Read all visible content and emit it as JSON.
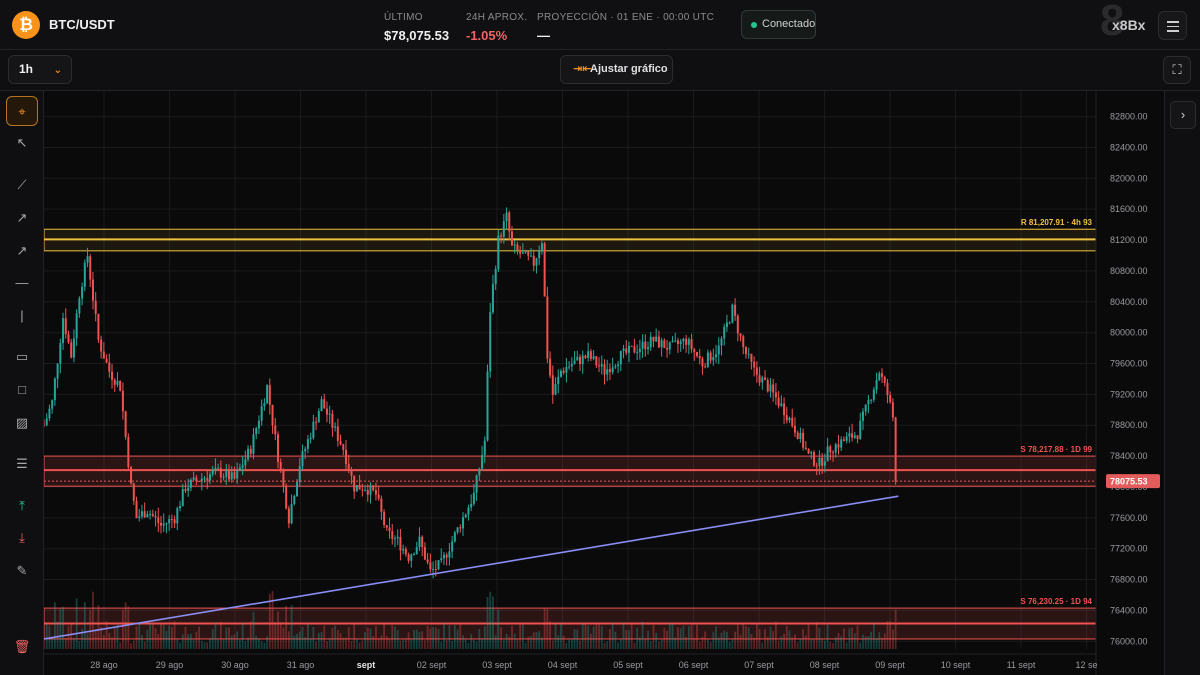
{
  "header": {
    "pair": "BTC/USDT",
    "logo_icon": "bitcoin-logo-icon",
    "last_label": "ÚLTIMO",
    "last_value": "$78,075.53",
    "change_label": "24H APROX.",
    "change_value": "-1.05%",
    "projection_label": "PROYECCIÓN · 01 ENE · 00:00 UTC",
    "projection_value": "—",
    "connection_status": "Conectado",
    "brand": "x8Bx",
    "menu_icon": "hamburger-menu-icon"
  },
  "toolbar": {
    "timeframe": "1h",
    "fit_label": "Ajustar gráfico",
    "fit_icon": "arrows-compress-icon",
    "fullscreen_icon": "fullscreen-icon"
  },
  "left_tools": [
    "crosshair-icon",
    "cursor-icon",
    "trend-line-icon",
    "arrow-line-icon",
    "ray-icon",
    "horizontal-line-icon",
    "vertical-line-icon",
    "horizontal-band-icon",
    "rectangle-icon",
    "hatch-zone-icon",
    "fib-levels-icon",
    "long-position-icon",
    "short-position-icon",
    "note-icon",
    "trash-icon"
  ],
  "right_panel": {
    "expand_icon": "chevron-right-icon"
  },
  "colors": {
    "up": "#26a69a",
    "down": "#ef5350",
    "resistance": "#f0c040",
    "support": "#ef5350",
    "trendline": "#8a8ef5",
    "accent": "#f7931a",
    "price_tag": "#e35b5b"
  },
  "chart_data": {
    "type": "candlestick",
    "interval": "1h",
    "y_ticks": [
      "82800.00",
      "82400.00",
      "82000.00",
      "81600.00",
      "81200.00",
      "80800.00",
      "80400.00",
      "80000.00",
      "79600.00",
      "79200.00",
      "78800.00",
      "78400.00",
      "78000.00",
      "77600.00",
      "77200.00",
      "76800.00",
      "76400.00",
      "76000.00"
    ],
    "ylim": [
      75900,
      82950
    ],
    "x_ticks": [
      "28 ago",
      "29 ago",
      "30 ago",
      "31 ago",
      "sept",
      "02 sept",
      "03 sept",
      "04 sept",
      "05 sept",
      "06 sept",
      "07 sept",
      "08 sept",
      "09 sept",
      "10 sept",
      "11 sept",
      "12 se"
    ],
    "current_price": "78075.53",
    "levels": [
      {
        "kind": "resistance",
        "label": "R 81,207.91 · 4h 93",
        "price": 81207.91,
        "band": [
          81060,
          81340
        ]
      },
      {
        "kind": "support",
        "label": "S 78,217.88 · 1D 99",
        "price": 78217.88,
        "band": [
          78010,
          78400
        ]
      },
      {
        "kind": "support",
        "label": "S 76,230.25 · 1D 94",
        "price": 76230.25,
        "band": [
          76030,
          76430
        ]
      }
    ],
    "trendline": {
      "from": [
        "27 ago 20:00",
        76030
      ],
      "to": [
        "09 sept 22:00",
        77880
      ]
    },
    "price_path": [
      [
        "27 ago 20:00",
        78800
      ],
      [
        "27 ago 23:00",
        79100
      ],
      [
        "28 ago 03:00",
        80200
      ],
      [
        "28 ago 06:00",
        79700
      ],
      [
        "28 ago 09:00",
        80500
      ],
      [
        "28 ago 12:00",
        81000
      ],
      [
        "28 ago 16:00",
        79900
      ],
      [
        "28 ago 20:00",
        79500
      ],
      [
        "29 ago 00:00",
        79300
      ],
      [
        "29 ago 04:00",
        78000
      ],
      [
        "29 ago 06:00",
        77600
      ],
      [
        "29 ago 10:00",
        77700
      ],
      [
        "29 ago 15:00",
        77500
      ],
      [
        "29 ago 20:00",
        77600
      ],
      [
        "30 ago 00:00",
        78000
      ],
      [
        "30 ago 05:00",
        78100
      ],
      [
        "30 ago 12:00",
        78200
      ],
      [
        "30 ago 18:00",
        78100
      ],
      [
        "31 ago 00:00",
        78500
      ],
      [
        "31 ago 06:00",
        79300
      ],
      [
        "31 ago 10:00",
        78400
      ],
      [
        "31 ago 14:00",
        77600
      ],
      [
        "31 ago 18:00",
        78300
      ],
      [
        "31 ago 22:00",
        78700
      ],
      [
        "01 sept 02:00",
        79100
      ],
      [
        "01 sept 06:00",
        78800
      ],
      [
        "01 sept 10:00",
        78500
      ],
      [
        "01 sept 14:00",
        78000
      ],
      [
        "01 sept 18:00",
        78000
      ],
      [
        "01 sept 22:00",
        77900
      ],
      [
        "02 sept 02:00",
        77400
      ],
      [
        "02 sept 06:00",
        77300
      ],
      [
        "02 sept 10:00",
        77100
      ],
      [
        "02 sept 14:00",
        77300
      ],
      [
        "02 sept 18:00",
        76900
      ],
      [
        "02 sept 22:00",
        77000
      ],
      [
        "03 sept 02:00",
        77300
      ],
      [
        "03 sept 06:00",
        77600
      ],
      [
        "03 sept 10:00",
        77900
      ],
      [
        "03 sept 14:00",
        78600
      ],
      [
        "03 sept 16:00",
        80300
      ],
      [
        "03 sept 19:00",
        81200
      ],
      [
        "03 sept 22:00",
        81500
      ],
      [
        "04 sept 00:00",
        81100
      ],
      [
        "04 sept 04:00",
        81000
      ],
      [
        "04 sept 08:00",
        80900
      ],
      [
        "04 sept 11:00",
        81200
      ],
      [
        "04 sept 13:00",
        79700
      ],
      [
        "04 sept 15:00",
        79200
      ],
      [
        "04 sept 18:00",
        79500
      ],
      [
        "04 sept 22:00",
        79600
      ],
      [
        "05 sept 04:00",
        79700
      ],
      [
        "05 sept 10:00",
        79500
      ],
      [
        "05 sept 16:00",
        79700
      ],
      [
        "05 sept 22:00",
        79800
      ],
      [
        "06 sept 04:00",
        79900
      ],
      [
        "06 sept 10:00",
        79800
      ],
      [
        "06 sept 16:00",
        79900
      ],
      [
        "06 sept 22:00",
        79600
      ],
      [
        "07 sept 04:00",
        79800
      ],
      [
        "07 sept 09:00",
        80300
      ],
      [
        "07 sept 13:00",
        79800
      ],
      [
        "07 sept 17:00",
        79500
      ],
      [
        "07 sept 22:00",
        79300
      ],
      [
        "08 sept 04:00",
        79000
      ],
      [
        "08 sept 09:00",
        78700
      ],
      [
        "08 sept 13:00",
        78400
      ],
      [
        "08 sept 17:00",
        78300
      ],
      [
        "08 sept 21:00",
        78500
      ],
      [
        "09 sept 02:00",
        78600
      ],
      [
        "09 sept 07:00",
        78700
      ],
      [
        "09 sept 11:00",
        79100
      ],
      [
        "09 sept 15:00",
        79500
      ],
      [
        "09 sept 18:00",
        79200
      ],
      [
        "09 sept 20:00",
        78900
      ],
      [
        "09 sept 21:00",
        78075
      ]
    ]
  }
}
